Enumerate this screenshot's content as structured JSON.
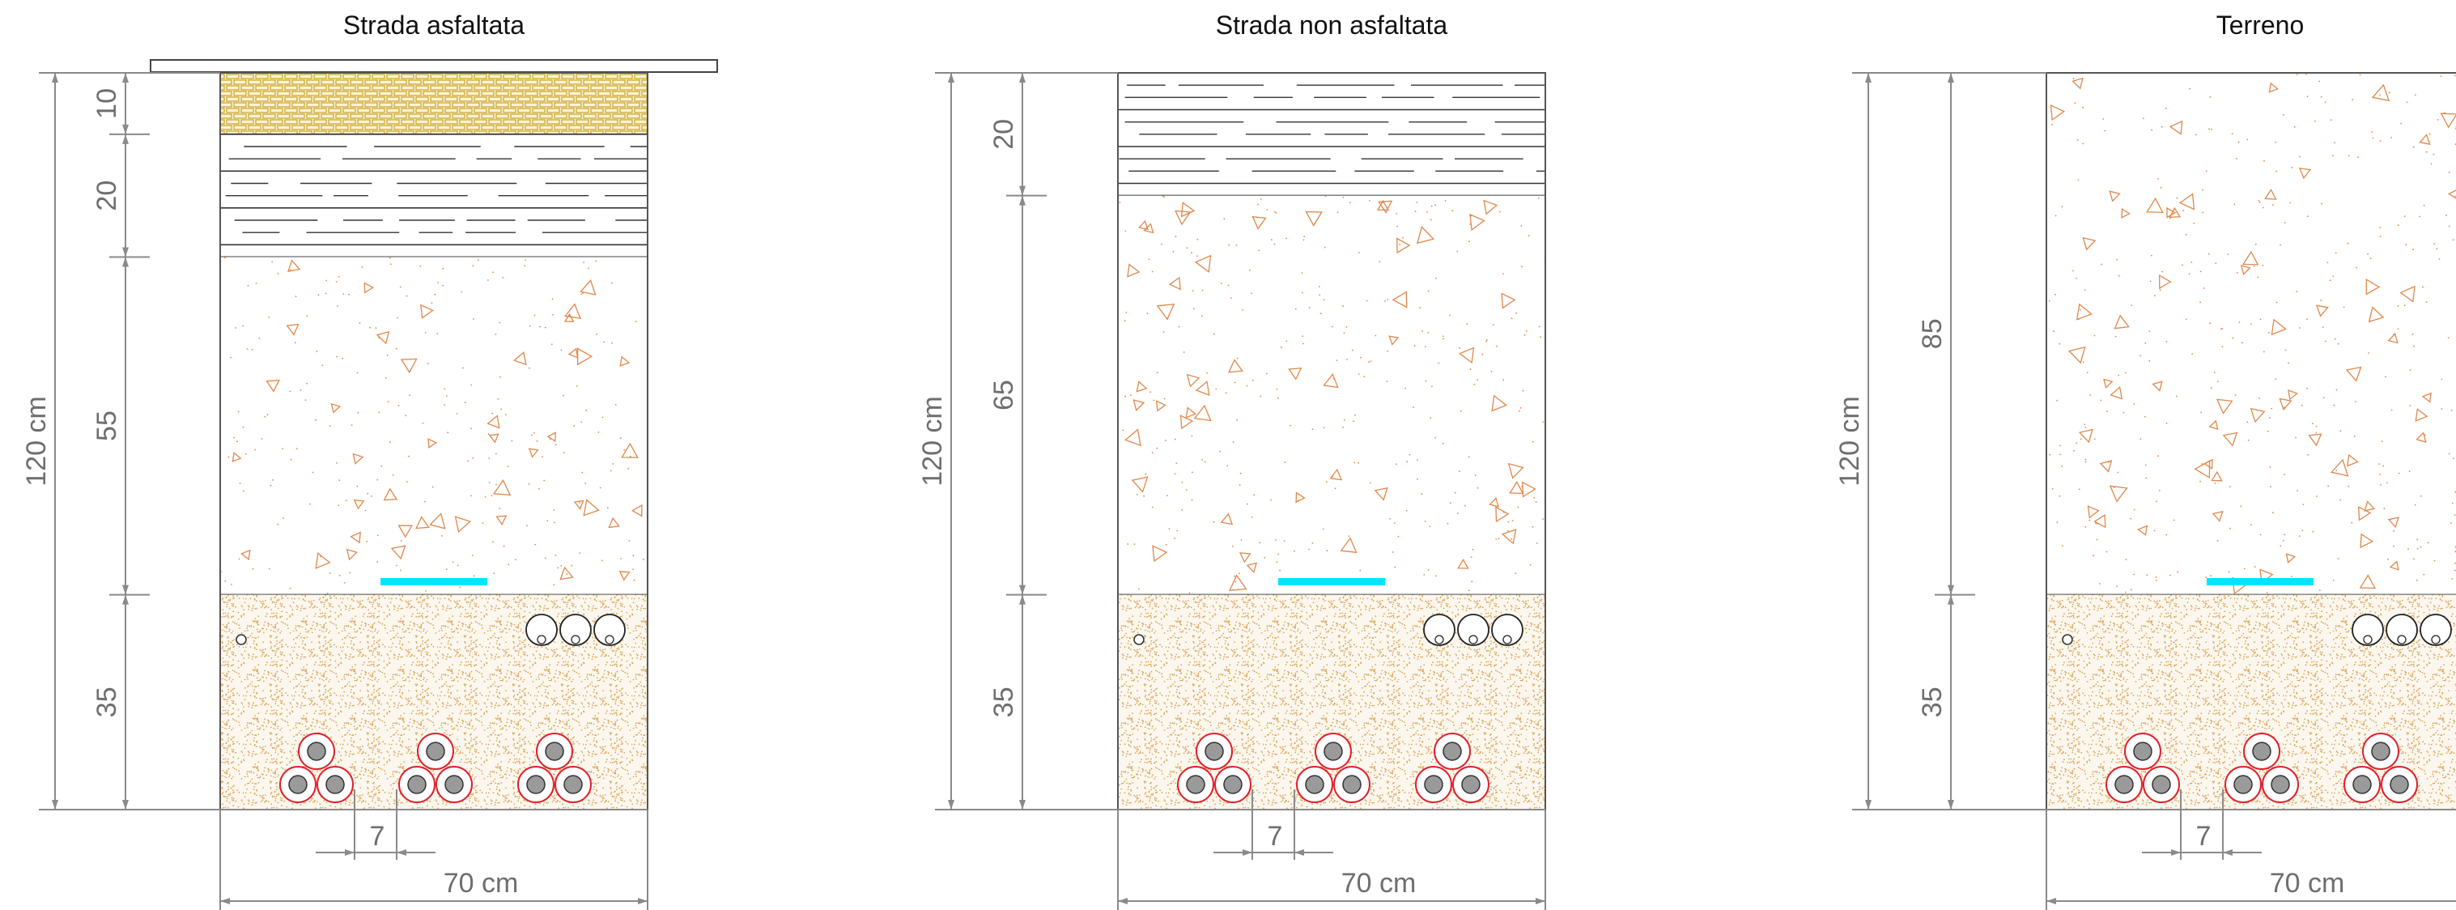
{
  "panels": [
    {
      "id": "asfaltata",
      "title": "Strada asfaltata",
      "total_label": "120 cm",
      "width_label": "70 cm",
      "spacing_label": "7",
      "layers": [
        {
          "material": "asphalt",
          "label": "10"
        },
        {
          "material": "base",
          "label": "20"
        },
        {
          "material": "gravel",
          "label": "55"
        },
        {
          "material": "sand",
          "label": "35"
        }
      ]
    },
    {
      "id": "non-asfaltata",
      "title": "Strada non asfaltata",
      "total_label": "120 cm",
      "width_label": "70 cm",
      "spacing_label": "7",
      "layers": [
        {
          "material": "base",
          "label": "20"
        },
        {
          "material": "gravel",
          "label": "65"
        },
        {
          "material": "sand",
          "label": "35"
        }
      ]
    },
    {
      "id": "terreno",
      "title": "Terreno",
      "total_label": "120 cm",
      "width_label": "70 cm",
      "spacing_label": "7",
      "layers": [
        {
          "material": "gravel",
          "label": "85"
        },
        {
          "material": "sand",
          "label": "35"
        }
      ]
    }
  ],
  "colors": {
    "asphalt": "#c9a227",
    "asphalt_fill": "#fbf3d4",
    "gravel": "#e0874a",
    "sand": "#d9a55a",
    "sand_fill": "#fcf7ee",
    "warning_tape": "#00e5ff",
    "cable_ring": "#e0202a",
    "conductor": "#9a9a9a",
    "dimension": "#8a8a8a"
  }
}
